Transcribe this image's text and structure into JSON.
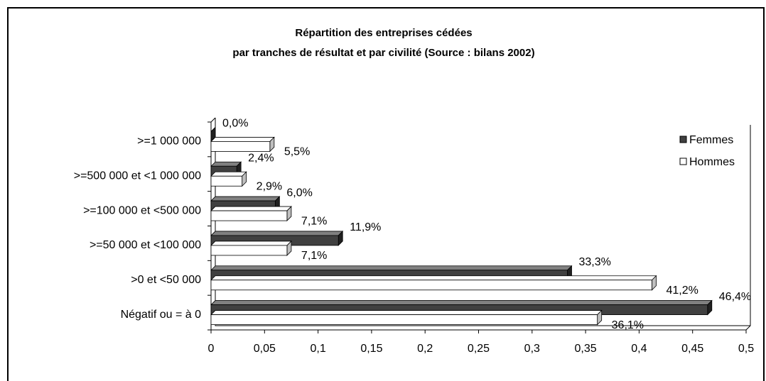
{
  "chart_data": {
    "type": "bar",
    "orientation": "horizontal",
    "title": "Répartition des entreprises cédées",
    "subtitle": "par tranches de résultat et par civilité (Source : bilans 2002)",
    "categories": [
      ">=1 000 000",
      ">=500 000 et <1 000 000",
      ">=100 000 et <500 000",
      ">=50 000 et <100 000",
      ">0 et <50 000",
      "Négatif ou = à 0"
    ],
    "series": [
      {
        "name": "Femmes",
        "color": "#404040",
        "values": [
          0,
          0.024,
          0.06,
          0.119,
          0.333,
          0.464
        ],
        "value_labels": [
          "0,0%",
          "2,4%",
          "6,0%",
          "11,9%",
          "33,3%",
          "46,4%"
        ]
      },
      {
        "name": "Hommes",
        "color": "#ffffff",
        "values": [
          0.055,
          0.029,
          0.071,
          0.071,
          0.412,
          0.361
        ],
        "value_labels": [
          "5,5%",
          "2,9%",
          "7,1%",
          "7,1%",
          "41,2%",
          "36,1%"
        ]
      }
    ],
    "xlim": [
      0,
      0.5
    ],
    "xticks": [
      0,
      {
        "value": 0.05,
        "label": "0,05"
      },
      {
        "value": 0.1,
        "label": "0,1"
      },
      {
        "value": 0.15,
        "label": "0,15"
      },
      {
        "value": 0.2,
        "label": "0,2"
      },
      {
        "value": 0.25,
        "label": "0,25"
      },
      {
        "value": 0.3,
        "label": "0,3"
      },
      {
        "value": 0.35,
        "label": "0,35"
      },
      {
        "value": 0.4,
        "label": "0,4"
      },
      {
        "value": 0.45,
        "label": "0,45"
      },
      {
        "value": 0.5,
        "label": "0,5"
      }
    ],
    "legend": "upper right"
  }
}
